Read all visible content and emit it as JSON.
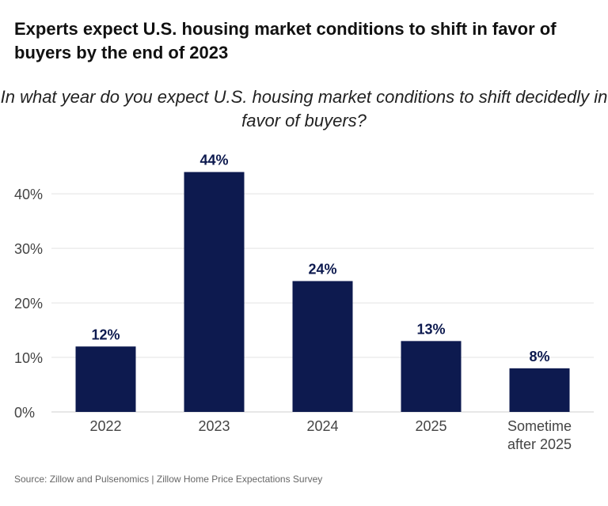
{
  "title": "Experts expect U.S. housing market conditions to shift in favor of buyers by the end of 2023",
  "subtitle": "In what year do you expect U.S. housing market conditions to shift decidedly in favor of buyers?",
  "source": "Source: Zillow and Pulsenomics | Zillow Home Price Expectations Survey",
  "colors": {
    "bar": "#0d1a4f",
    "grid": "#e3e3e3",
    "axis": "#cfcfcf",
    "tick_text": "#444444",
    "label_text": "#0d1a4f"
  },
  "chart_data": {
    "type": "bar",
    "title": "Experts expect U.S. housing market conditions to shift in favor of buyers by the end of 2023",
    "subtitle": "In what year do you expect U.S. housing market conditions to shift decidedly in favor of buyers?",
    "xlabel": "",
    "ylabel": "",
    "categories": [
      [
        "2022"
      ],
      [
        "2023"
      ],
      [
        "2024"
      ],
      [
        "2025"
      ],
      [
        "Sometime",
        "after 2025"
      ]
    ],
    "values": [
      12,
      44,
      24,
      13,
      8
    ],
    "data_labels": [
      "12%",
      "44%",
      "24%",
      "13%",
      "8%"
    ],
    "ylim": [
      0,
      48
    ],
    "yticks": [
      0,
      10,
      20,
      30,
      40
    ],
    "ytick_labels": [
      "0%",
      "10%",
      "20%",
      "30%",
      "40%"
    ],
    "grid": true,
    "legend": "none"
  }
}
